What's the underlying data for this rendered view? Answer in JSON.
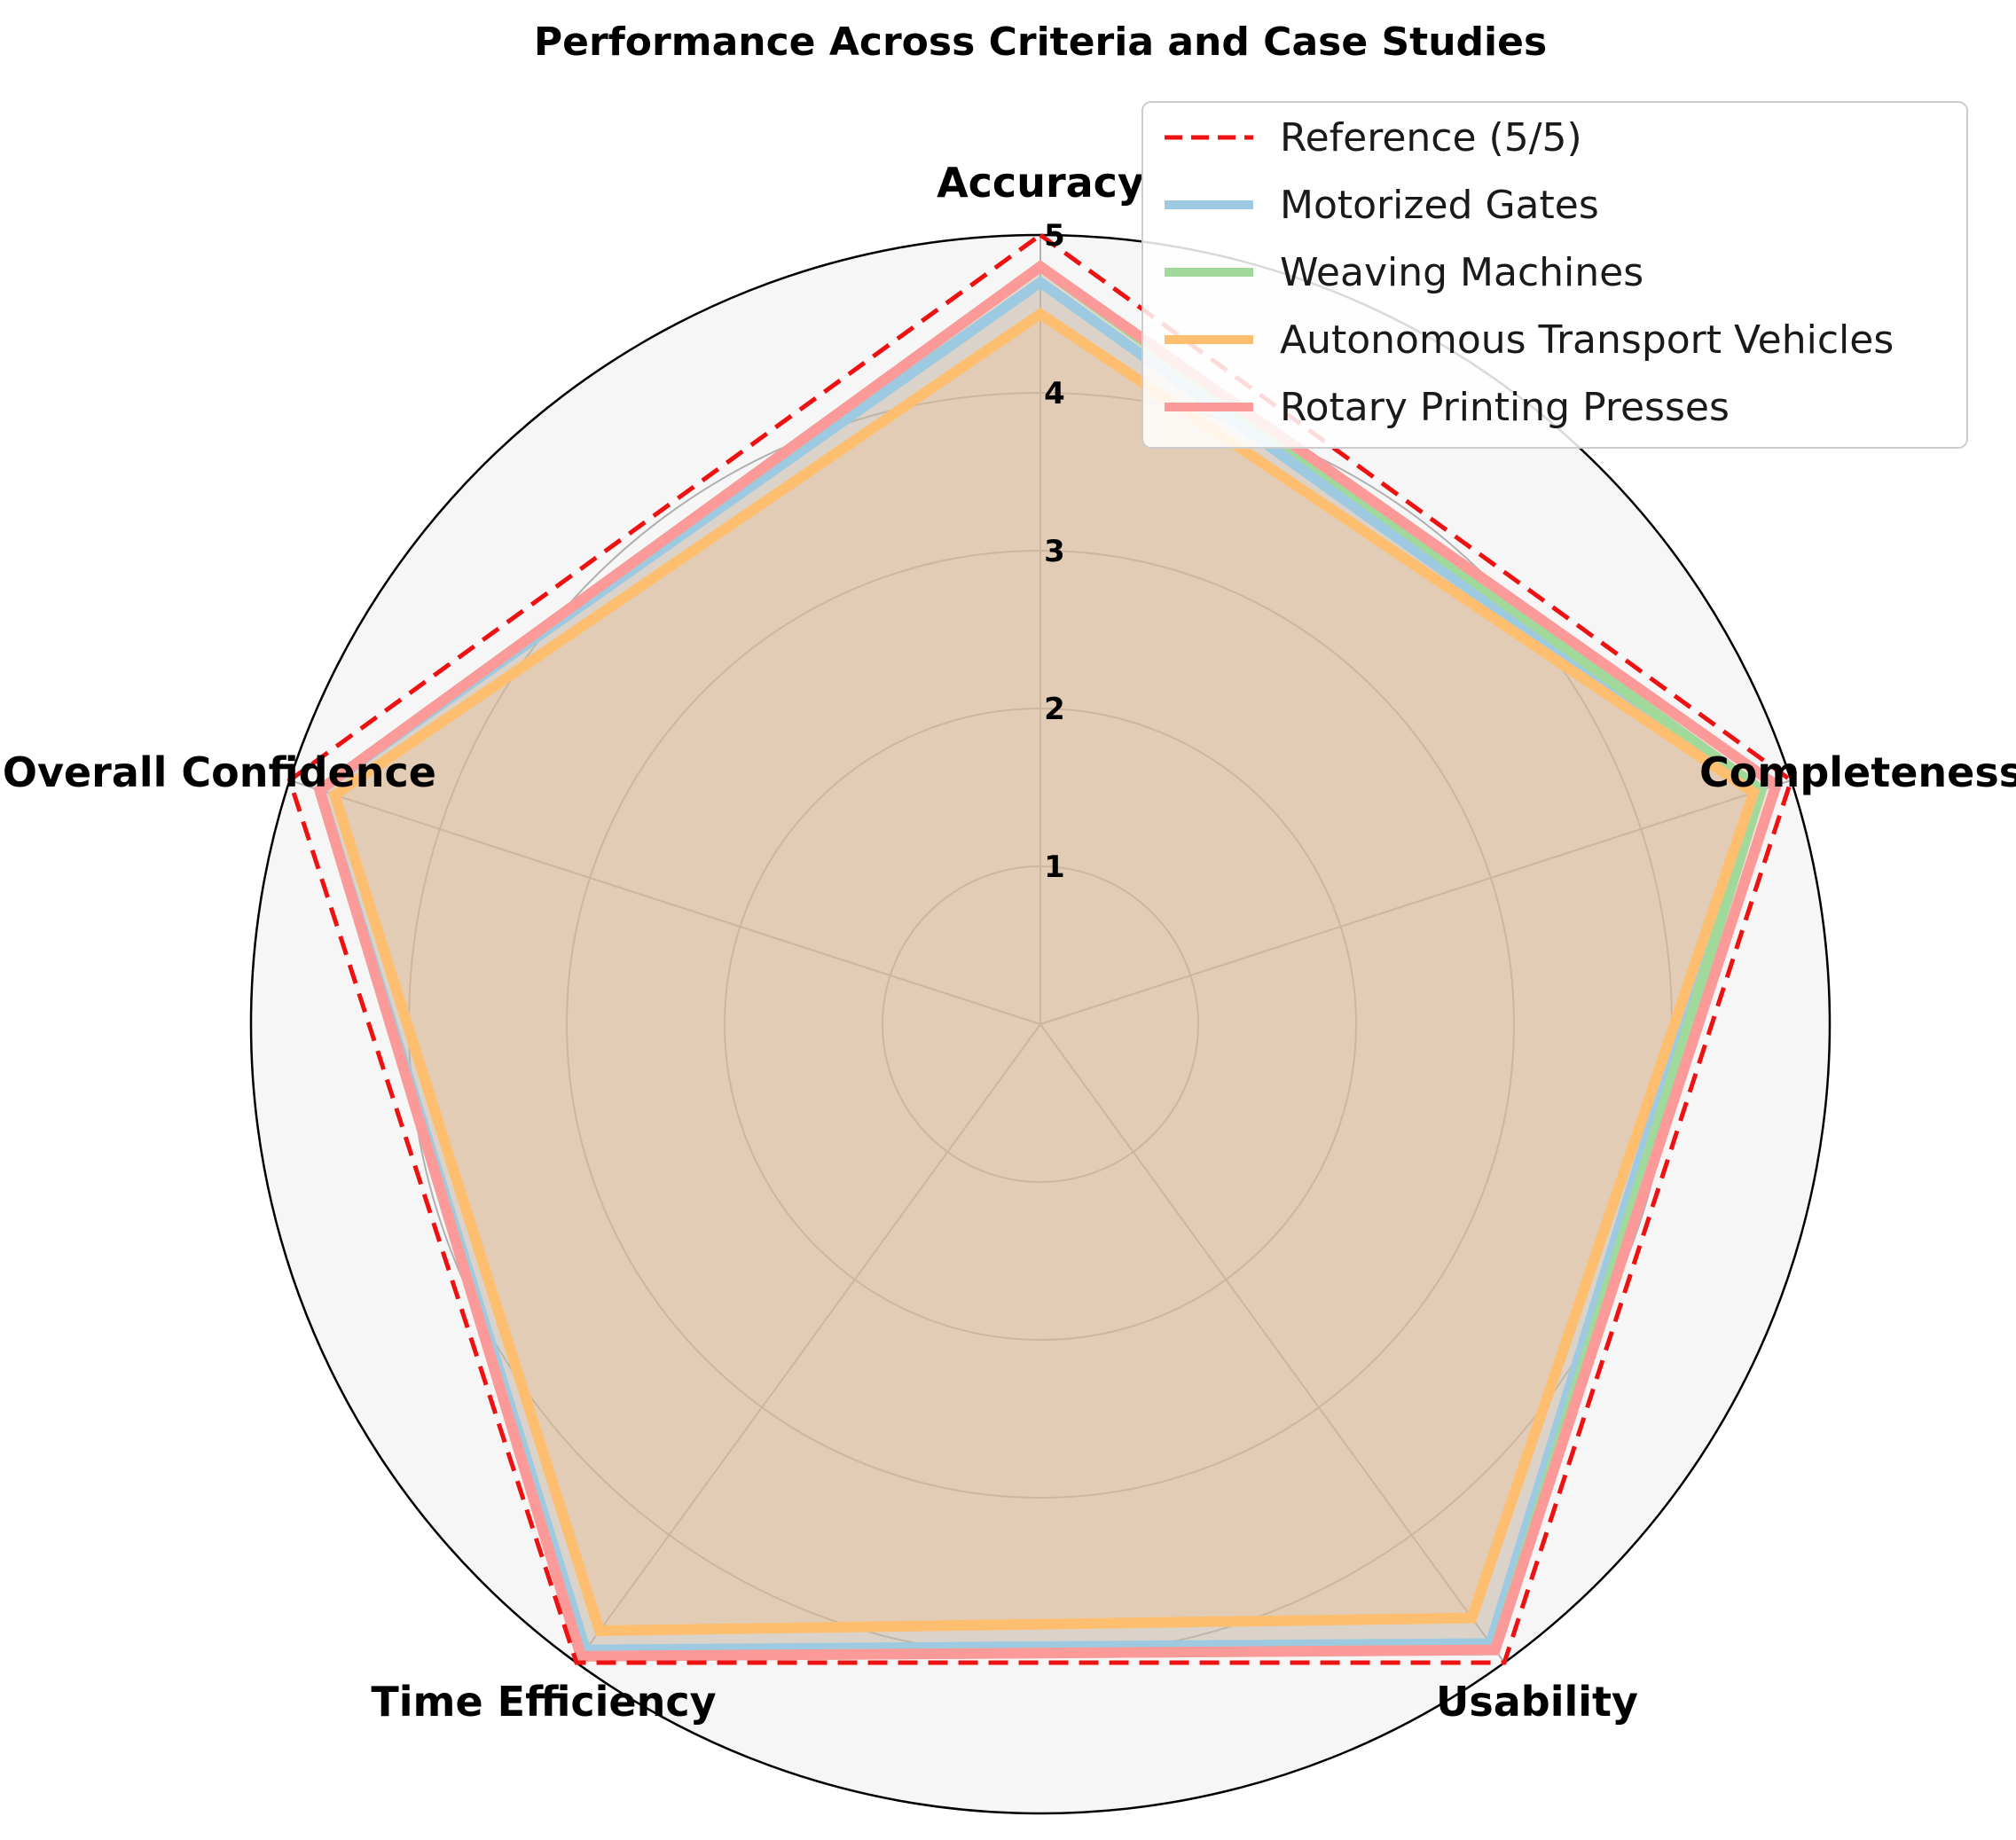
{
  "chart_data": {
    "type": "radar",
    "title": "Performance Across Criteria and Case Studies",
    "axes": [
      "Accuracy",
      "Completeness",
      "Usability",
      "Time Efficiency",
      "Overall Confidence"
    ],
    "rlim": [
      0,
      5
    ],
    "rticks": [
      "1",
      "2",
      "3",
      "4",
      "5"
    ],
    "grid": true,
    "legend_position": "upper-right",
    "reference": {
      "name": "Reference (5/5)",
      "values": [
        5,
        5,
        5,
        5,
        5
      ],
      "color": "#ee1111",
      "style": "dashed"
    },
    "series": [
      {
        "name": "Motorized Gates",
        "values": [
          4.7,
          4.75,
          4.85,
          4.9,
          4.8
        ],
        "color": "#9ecae1"
      },
      {
        "name": "Weaving Machines",
        "values": [
          4.8,
          4.8,
          4.9,
          4.95,
          4.8
        ],
        "color": "#a1d99b"
      },
      {
        "name": "Autonomous Transport Vehicles",
        "values": [
          4.5,
          4.75,
          4.65,
          4.75,
          4.7
        ],
        "color": "#fdbf6f"
      },
      {
        "name": "Rotary Printing Presses",
        "values": [
          4.8,
          4.9,
          4.9,
          4.95,
          4.8
        ],
        "color": "#fb9a99"
      }
    ]
  }
}
